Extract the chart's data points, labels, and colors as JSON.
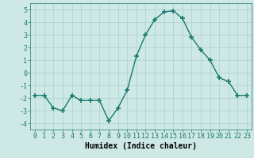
{
  "x": [
    0,
    1,
    2,
    3,
    4,
    5,
    6,
    7,
    8,
    9,
    10,
    11,
    12,
    13,
    14,
    15,
    16,
    17,
    18,
    19,
    20,
    21,
    22,
    23
  ],
  "y": [
    -1.8,
    -1.8,
    -2.8,
    -3.0,
    -1.8,
    -2.2,
    -2.2,
    -2.2,
    -3.8,
    -2.8,
    -1.4,
    1.3,
    3.0,
    4.2,
    4.8,
    4.9,
    4.3,
    2.8,
    1.8,
    1.0,
    -0.4,
    -0.7,
    -1.8,
    -1.8
  ],
  "line_color": "#1a7a6e",
  "marker": "+",
  "marker_size": 4,
  "marker_lw": 1.2,
  "bg_color": "#cde8e5",
  "grid_color": "#b0d4d0",
  "xlabel": "Humidex (Indice chaleur)",
  "xlabel_fontsize": 7,
  "tick_fontsize": 6,
  "ylim": [
    -4.5,
    5.5
  ],
  "yticks": [
    -4,
    -3,
    -2,
    -1,
    0,
    1,
    2,
    3,
    4,
    5
  ],
  "xticks": [
    0,
    1,
    2,
    3,
    4,
    5,
    6,
    7,
    8,
    9,
    10,
    11,
    12,
    13,
    14,
    15,
    16,
    17,
    18,
    19,
    20,
    21,
    22,
    23
  ],
  "line_width": 1.0
}
